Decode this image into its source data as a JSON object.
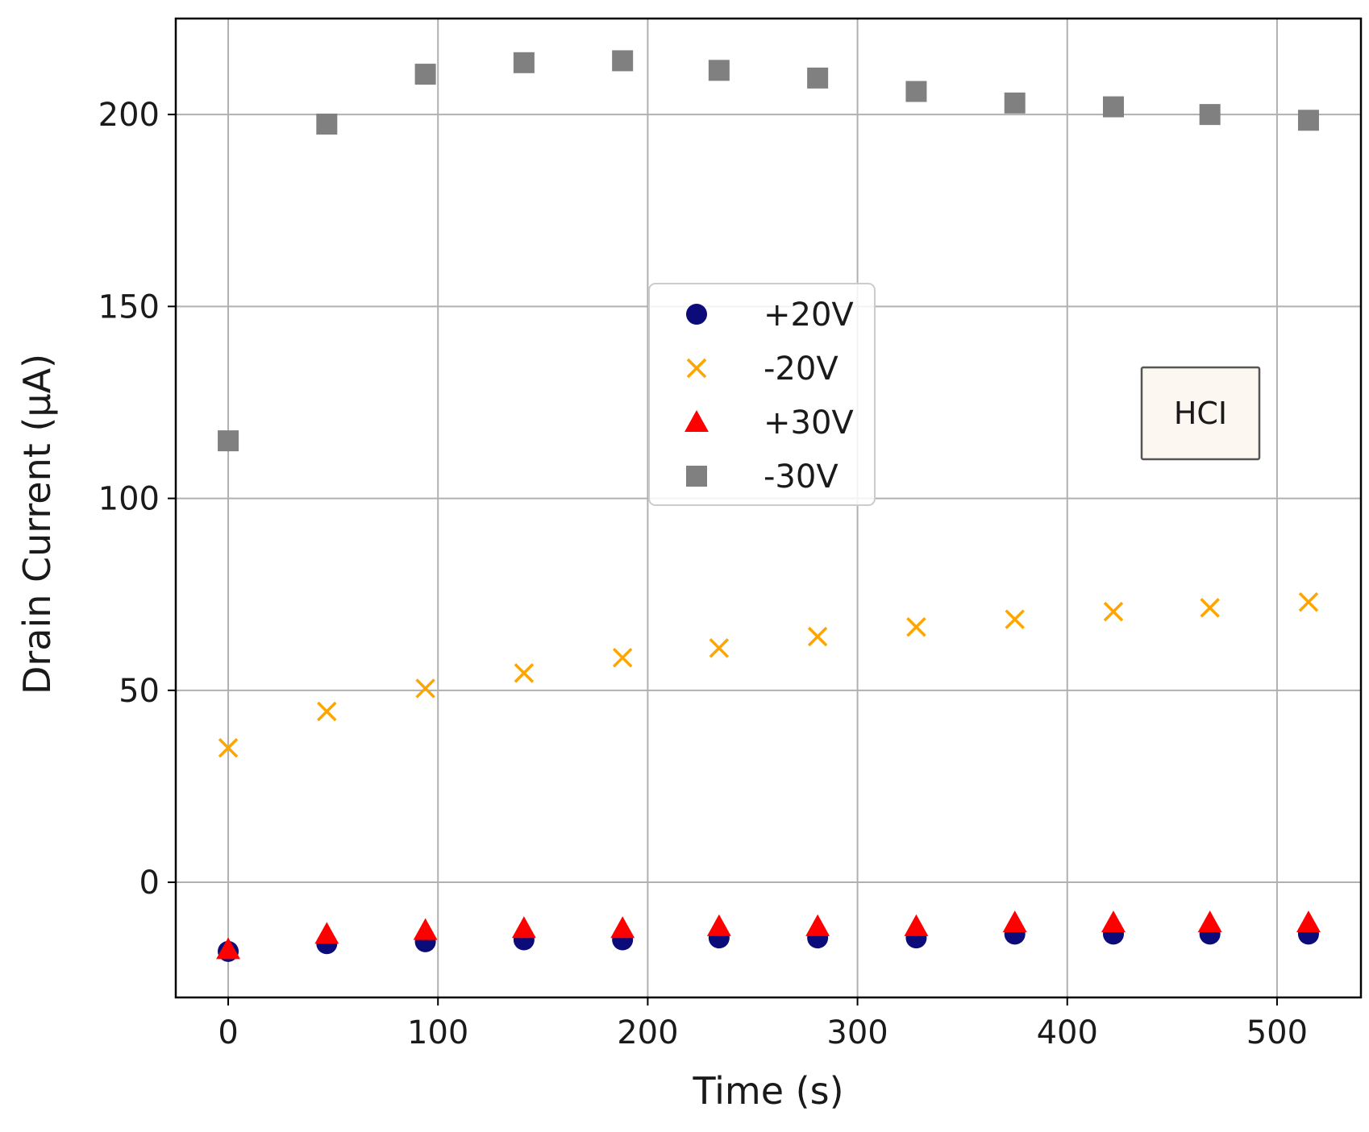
{
  "chart_data": {
    "type": "scatter",
    "title": "",
    "xlabel": "Time (s)",
    "ylabel": "Drain Current (μA)",
    "xlim": [
      -25,
      540
    ],
    "ylim": [
      -30,
      225
    ],
    "xticks": [
      0,
      100,
      200,
      300,
      400,
      500
    ],
    "yticks": [
      0,
      50,
      100,
      150,
      200
    ],
    "grid": true,
    "legend_position": "upper-center",
    "annotation": "HCI",
    "series": [
      {
        "name": "+20V",
        "marker": "circle",
        "color": "#0b0b7a",
        "x": [
          0,
          47,
          94,
          141,
          188,
          234,
          281,
          328,
          375,
          422,
          468,
          515
        ],
        "y": [
          -18,
          -16,
          -15.5,
          -15,
          -15,
          -14.5,
          -14.5,
          -14.5,
          -13.5,
          -13.5,
          -13.5,
          -13.5
        ]
      },
      {
        "name": "-20V",
        "marker": "x",
        "color": "#ffa500",
        "x": [
          0,
          47,
          94,
          141,
          188,
          234,
          281,
          328,
          375,
          422,
          468,
          515
        ],
        "y": [
          35,
          44.5,
          50.5,
          54.5,
          58.5,
          61,
          64,
          66.5,
          68.5,
          70.5,
          71.5,
          73
        ]
      },
      {
        "name": "+30V",
        "marker": "triangle",
        "color": "#ff0000",
        "x": [
          0,
          47,
          94,
          141,
          188,
          234,
          281,
          328,
          375,
          422,
          468,
          515
        ],
        "y": [
          -17.5,
          -13.5,
          -12.5,
          -12,
          -12,
          -11.5,
          -11.5,
          -11.5,
          -10.5,
          -10.5,
          -10.5,
          -10.5
        ]
      },
      {
        "name": "-30V",
        "marker": "square",
        "color": "#808080",
        "x": [
          0,
          47,
          94,
          141,
          188,
          234,
          281,
          328,
          375,
          422,
          468,
          515
        ],
        "y": [
          115,
          197.5,
          210.5,
          213.5,
          214,
          211.5,
          209.5,
          206,
          203,
          202,
          200,
          198.5
        ]
      }
    ]
  }
}
